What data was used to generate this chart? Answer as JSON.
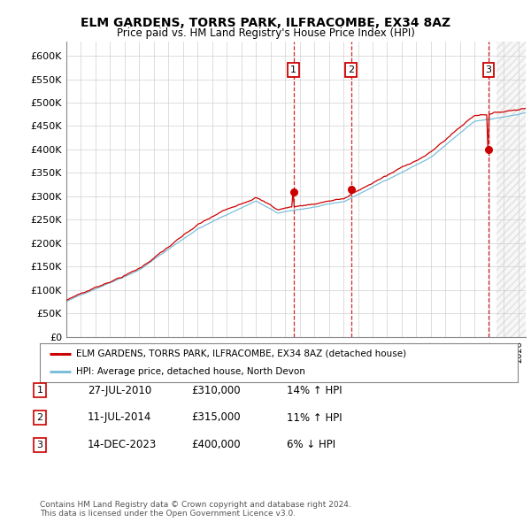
{
  "title": "ELM GARDENS, TORRS PARK, ILFRACOMBE, EX34 8AZ",
  "subtitle": "Price paid vs. HM Land Registry's House Price Index (HPI)",
  "ylabel_ticks": [
    "£0",
    "£50K",
    "£100K",
    "£150K",
    "£200K",
    "£250K",
    "£300K",
    "£350K",
    "£400K",
    "£450K",
    "£500K",
    "£550K",
    "£600K"
  ],
  "ytick_values": [
    0,
    50000,
    100000,
    150000,
    200000,
    250000,
    300000,
    350000,
    400000,
    450000,
    500000,
    550000,
    600000
  ],
  "ylim": [
    0,
    630000
  ],
  "xlim_start": 1995.0,
  "xlim_end": 2026.5,
  "sales": [
    {
      "date_num": 2010.57,
      "price": 310000,
      "label": "1"
    },
    {
      "date_num": 2014.53,
      "price": 315000,
      "label": "2"
    },
    {
      "date_num": 2023.95,
      "price": 400000,
      "label": "3"
    }
  ],
  "sale_labels_info": [
    {
      "num": "1",
      "date": "27-JUL-2010",
      "price": "£310,000",
      "pct": "14%",
      "dir": "↑"
    },
    {
      "num": "2",
      "date": "11-JUL-2014",
      "price": "£315,000",
      "pct": "11%",
      "dir": "↑"
    },
    {
      "num": "3",
      "date": "14-DEC-2023",
      "price": "£400,000",
      "pct": "6%",
      "dir": "↓"
    }
  ],
  "legend_line1": "ELM GARDENS, TORRS PARK, ILFRACOMBE, EX34 8AZ (detached house)",
  "legend_line2": "HPI: Average price, detached house, North Devon",
  "footer": "Contains HM Land Registry data © Crown copyright and database right 2024.\nThis data is licensed under the Open Government Licence v3.0.",
  "hpi_color": "#7bbfdb",
  "price_color": "#cc0000",
  "background_color": "#ffffff",
  "plot_bg_color": "#ffffff"
}
